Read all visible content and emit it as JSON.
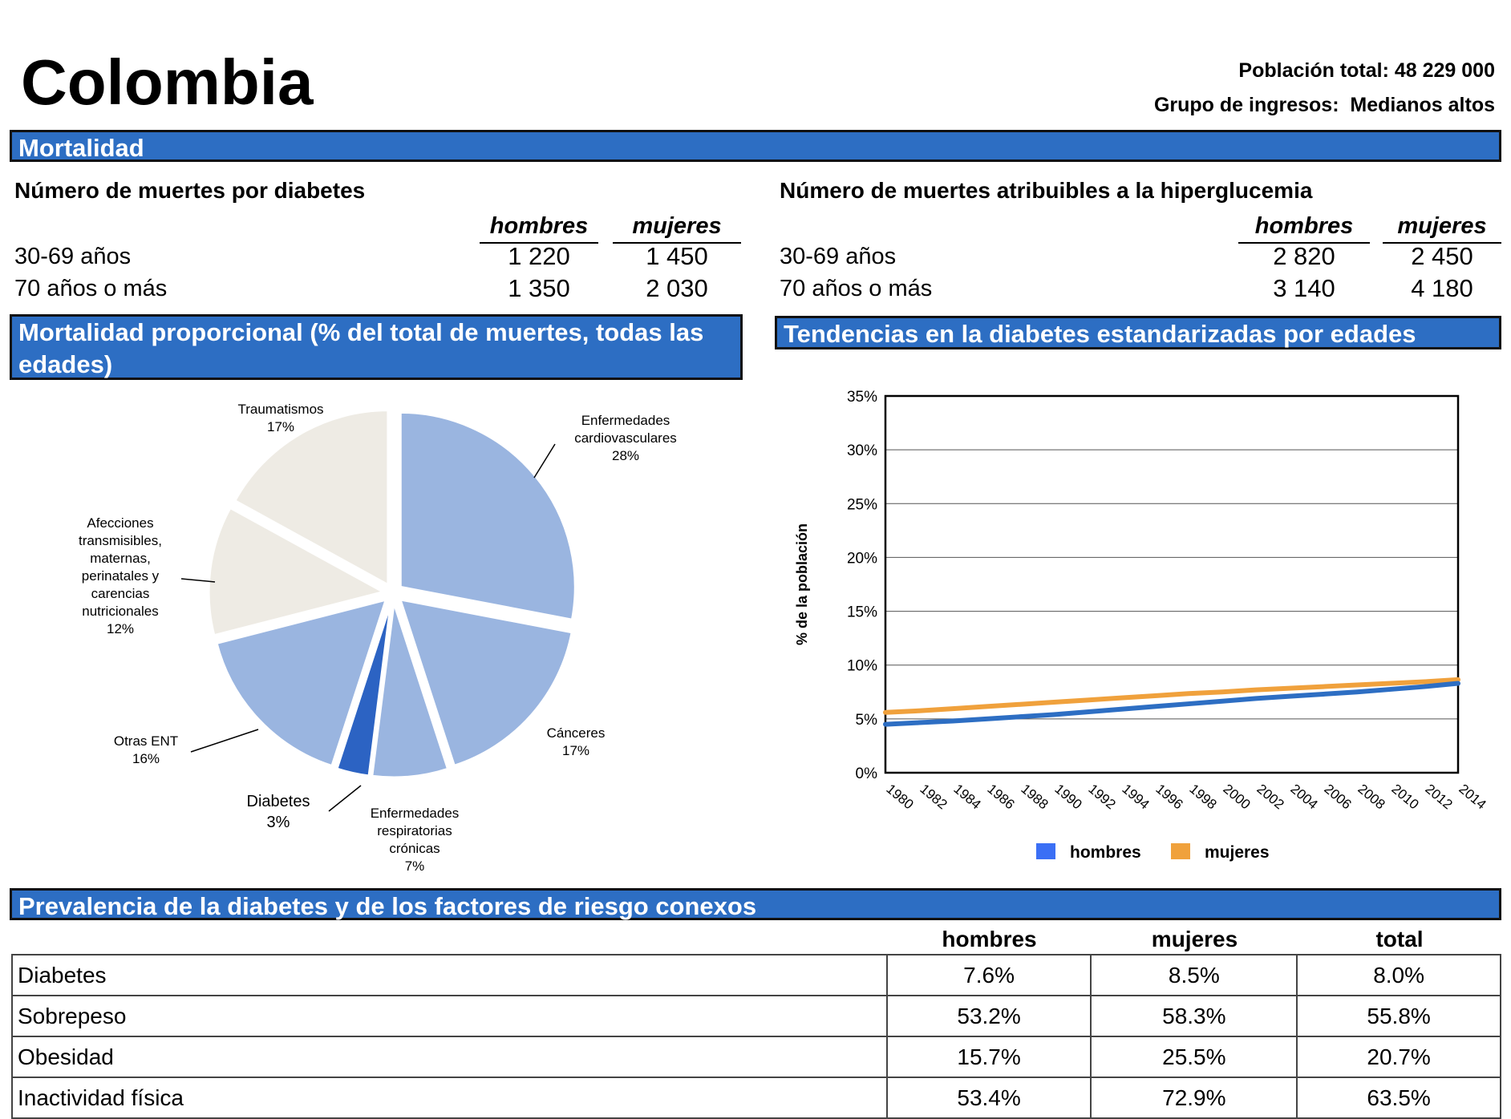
{
  "header": {
    "country": "Colombia",
    "population": "Población total: 48 229 000",
    "income_group": "Grupo de ingresos:  Medianos altos"
  },
  "sections": {
    "mortality": "Mortalidad",
    "proportional": "Mortalidad proporcional (% del total de muertes, todas las edades)",
    "trends": "Tendencias en la diabetes estandarizadas por edades",
    "prevalence": "Prevalencia de la diabetes y de los factores de riesgo conexos"
  },
  "deaths_diabetes": {
    "title": "Número de muertes por diabetes",
    "col_men": "hombres",
    "col_women": "mujeres",
    "rows": [
      {
        "label": "30-69 años",
        "men": "1 220",
        "women": "1 450"
      },
      {
        "label": "70 años o más",
        "men": "1 350",
        "women": "2 030"
      }
    ]
  },
  "deaths_hyperglycemia": {
    "title": "Número de muertes atribuibles a la hiperglucemia",
    "col_men": "hombres",
    "col_women": "mujeres",
    "rows": [
      {
        "label": "30-69 años",
        "men": "2 820",
        "women": "2 450"
      },
      {
        "label": "70 años o más",
        "men": "3 140",
        "women": "4 180"
      }
    ]
  },
  "chart_data": [
    {
      "type": "pie",
      "slices": [
        {
          "label": [
            "Enfermedades",
            "cardiovasculares",
            "28%"
          ],
          "value": 28,
          "color": "#9ab5e0"
        },
        {
          "label": [
            "Cánceres",
            "17%"
          ],
          "value": 17,
          "color": "#9ab5e0"
        },
        {
          "label": [
            "Enfermedades",
            "respiratorias",
            "crónicas",
            "7%"
          ],
          "value": 7,
          "color": "#9ab5e0"
        },
        {
          "label": [
            "Diabetes",
            "3%"
          ],
          "value": 3,
          "color": "#2c63c3"
        },
        {
          "label": [
            "Otras ENT",
            "16%"
          ],
          "value": 16,
          "color": "#9ab5e0"
        },
        {
          "label": [
            "Afecciones",
            "transmisibles,",
            "maternas,",
            "perinatales y",
            "carencias",
            "nutricionales",
            "12%"
          ],
          "value": 12,
          "color": "#eeebe4"
        },
        {
          "label": [
            "Traumatismos",
            "17%"
          ],
          "value": 17,
          "color": "#eeebe4"
        }
      ]
    },
    {
      "type": "line",
      "ylabel": "% de la población",
      "ylim": [
        0,
        35
      ],
      "yticks": [
        "0%",
        "5%",
        "10%",
        "15%",
        "20%",
        "25%",
        "30%",
        "35%"
      ],
      "xticks": [
        "1980",
        "1982",
        "1984",
        "1986",
        "1988",
        "1990",
        "1992",
        "1994",
        "1996",
        "1998",
        "2000",
        "2002",
        "2004",
        "2006",
        "2008",
        "2010",
        "2012",
        "2014"
      ],
      "grid": true,
      "legend": "bottom",
      "x": [
        1980,
        1982,
        1984,
        1986,
        1988,
        1990,
        1992,
        1994,
        1996,
        1998,
        2000,
        2002,
        2004,
        2006,
        2008,
        2010,
        2012,
        2014
      ],
      "series": [
        {
          "name": "hombres",
          "color": "#2d6ec3",
          "legend_color": "#3b6ff5",
          "values": [
            4.5,
            4.65,
            4.8,
            5.0,
            5.2,
            5.4,
            5.65,
            5.9,
            6.15,
            6.4,
            6.65,
            6.9,
            7.1,
            7.3,
            7.5,
            7.75,
            8.0,
            8.3
          ]
        },
        {
          "name": "mujeres",
          "color": "#f0a13c",
          "legend_color": "#f0a13c",
          "values": [
            5.6,
            5.75,
            5.95,
            6.15,
            6.35,
            6.55,
            6.75,
            6.95,
            7.15,
            7.35,
            7.5,
            7.7,
            7.85,
            8.0,
            8.15,
            8.3,
            8.45,
            8.65
          ]
        }
      ]
    }
  ],
  "prevalence_table": {
    "columns": [
      "hombres",
      "mujeres",
      "total"
    ],
    "rows": [
      {
        "label": "Diabetes",
        "values": [
          "7.6%",
          "8.5%",
          "8.0%"
        ]
      },
      {
        "label": "Sobrepeso",
        "values": [
          "53.2%",
          "58.3%",
          "55.8%"
        ]
      },
      {
        "label": "Obesidad",
        "values": [
          "15.7%",
          "25.5%",
          "20.7%"
        ]
      },
      {
        "label": "Inactividad física",
        "values": [
          "53.4%",
          "72.9%",
          "63.5%"
        ]
      }
    ]
  }
}
